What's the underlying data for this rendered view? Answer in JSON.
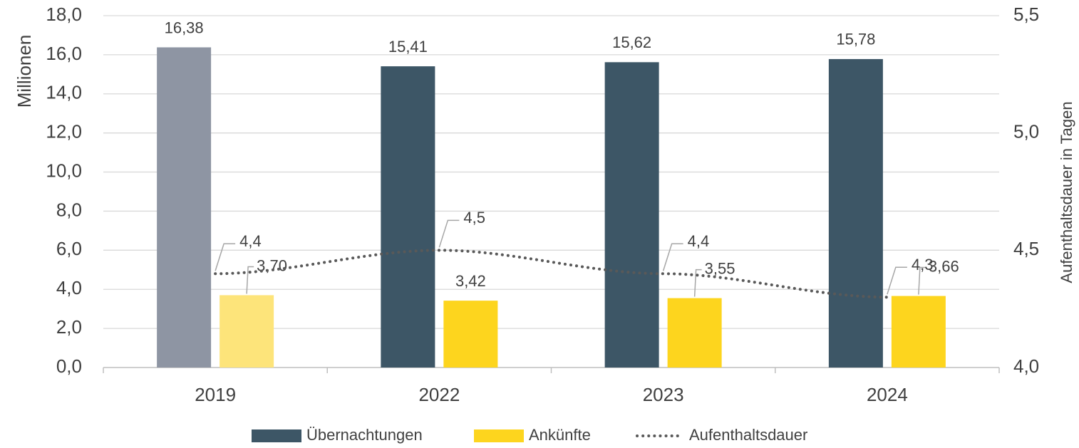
{
  "chart_data": {
    "type": "bar-line",
    "categories": [
      "2019",
      "2022",
      "2023",
      "2024"
    ],
    "y_label": "Millionen",
    "y2_label": "Aufenthaltsdauer in Tagen",
    "ylim": [
      0,
      18
    ],
    "yticks": [
      {
        "value": 0,
        "label": "0,0"
      },
      {
        "value": 2,
        "label": "2,0"
      },
      {
        "value": 4,
        "label": "4,0"
      },
      {
        "value": 6,
        "label": "6,0"
      },
      {
        "value": 8,
        "label": "8,0"
      },
      {
        "value": 10,
        "label": "10,0"
      },
      {
        "value": 12,
        "label": "12,0"
      },
      {
        "value": 14,
        "label": "14,0"
      },
      {
        "value": 16,
        "label": "16,0"
      },
      {
        "value": 18,
        "label": "18,0"
      }
    ],
    "y2lim": [
      4,
      5.5
    ],
    "y2ticks": [
      {
        "value": 4,
        "label": "4,0"
      },
      {
        "value": 4.5,
        "label": "4,5"
      },
      {
        "value": 5,
        "label": "5,0"
      },
      {
        "value": 5.5,
        "label": "5,5"
      }
    ],
    "grid": true,
    "legend": "bottom",
    "series": [
      {
        "name": "Übernachtungen",
        "type": "bar",
        "color": "#3d5666",
        "point_colors": [
          "#8e95a3",
          "#3d5666",
          "#3d5666",
          "#3d5666"
        ],
        "values": [
          16.38,
          15.41,
          15.62,
          15.78
        ],
        "value_labels": [
          "16,38",
          "15,41",
          "15,62",
          "15,78"
        ]
      },
      {
        "name": "Ankünfte",
        "type": "bar",
        "color": "#fdd51e",
        "point_colors": [
          "#fde47a",
          "#fdd51e",
          "#fdd51e",
          "#fdd51e"
        ],
        "values": [
          3.7,
          3.42,
          3.55,
          3.66
        ],
        "value_labels": [
          "3,70",
          "3,42",
          "3,55",
          "3,66"
        ]
      },
      {
        "name": "Aufenthaltsdauer",
        "type": "line",
        "axis": "y2",
        "color": "#595959",
        "dashed": "dotted",
        "values": [
          4.4,
          4.5,
          4.4,
          4.3
        ],
        "value_labels": [
          "4,4",
          "4,5",
          "4,4",
          "4,3"
        ]
      }
    ]
  }
}
